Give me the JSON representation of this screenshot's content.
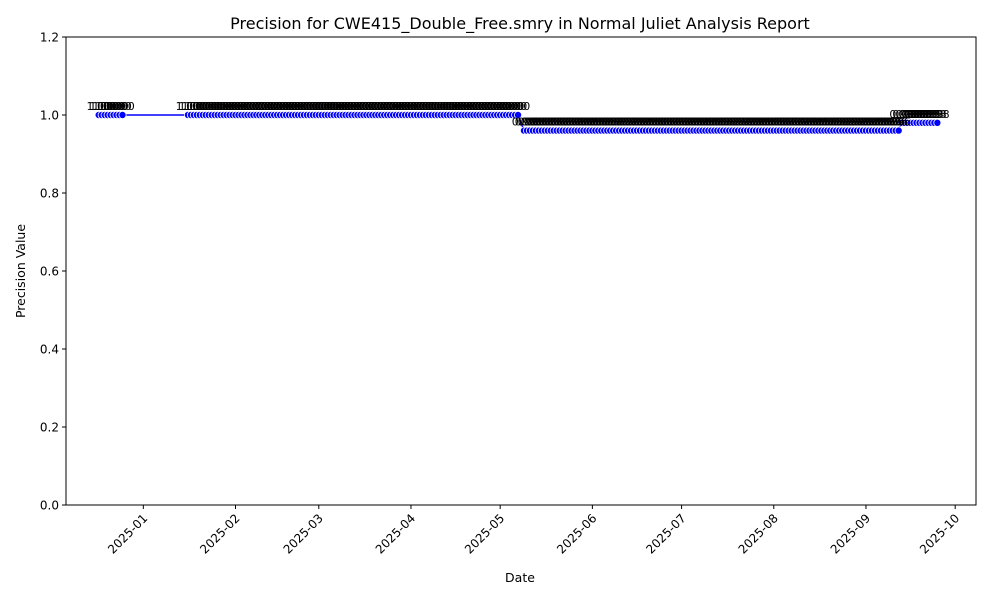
{
  "chart_data": {
    "type": "line",
    "title": "Precision for CWE415_Double_Free.smry in Normal Juliet Analysis Report",
    "xlabel": "Date",
    "ylabel": "Precision Value",
    "ylim": [
      0.0,
      1.2
    ],
    "yticks": [
      "0.0",
      "0.2",
      "0.4",
      "0.6",
      "0.8",
      "1.0",
      "1.2"
    ],
    "xlim": [
      "2024-12-06",
      "2025-10-08"
    ],
    "xticks": [
      "2025-01",
      "2025-02",
      "2025-03",
      "2025-04",
      "2025-05",
      "2025-06",
      "2025-07",
      "2025-08",
      "2025-09",
      "2025-10"
    ],
    "grid": false,
    "legend": "none",
    "line_color": "#0000ff",
    "marker_color": "#0000ff",
    "series": [
      {
        "segments": [
          {
            "start": "2024-12-17",
            "end": "2024-12-25",
            "value": 1.0,
            "label": "1.00"
          },
          {
            "start": "2025-01-16",
            "end": "2025-05-07",
            "value": 1.0,
            "label": "1.00"
          },
          {
            "start": "2025-05-09",
            "end": "2025-09-12",
            "value": 0.96,
            "label": "0.96"
          },
          {
            "start": "2025-09-13",
            "end": "2025-09-25",
            "value": 0.98,
            "label": "0.98"
          }
        ]
      }
    ]
  }
}
